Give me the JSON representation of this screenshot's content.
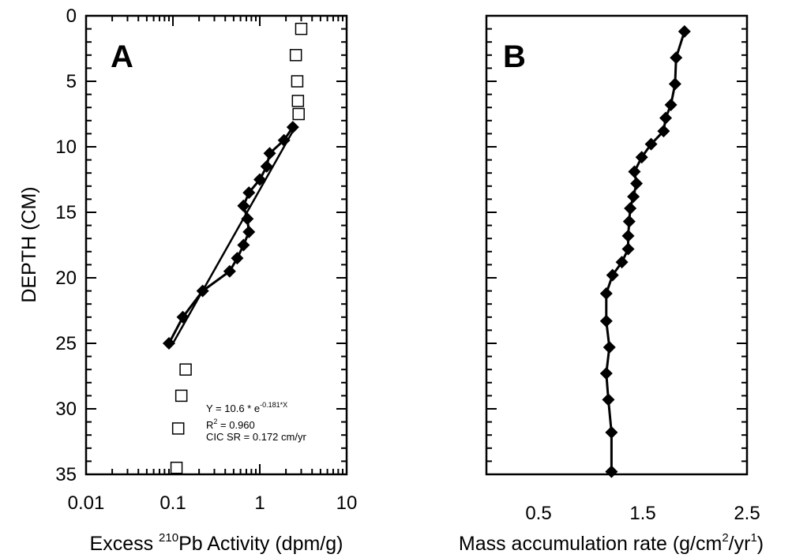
{
  "chart_data": [
    {
      "panel": "A",
      "type": "scatter",
      "xscale": "log",
      "xlim": [
        0.01,
        10
      ],
      "ylim": [
        35,
        0
      ],
      "xticks": [
        "0.01",
        "0.1",
        "1",
        "10"
      ],
      "yticks": [
        "0",
        "5",
        "10",
        "15",
        "20",
        "25",
        "30",
        "35"
      ],
      "xlabel_pre": "Excess ",
      "xlabel_sup": "210",
      "xlabel_post": "Pb Activity (dpm/g)",
      "ylabel": "DEPTH (CM)",
      "series": [
        {
          "marker": "open-square",
          "points": [
            {
              "x": 3.0,
              "y": 1.0
            },
            {
              "x": 2.6,
              "y": 3.0
            },
            {
              "x": 2.7,
              "y": 5.0
            },
            {
              "x": 2.75,
              "y": 6.5
            },
            {
              "x": 2.8,
              "y": 7.5
            },
            {
              "x": 0.14,
              "y": 27.0
            },
            {
              "x": 0.125,
              "y": 29.0
            },
            {
              "x": 0.115,
              "y": 31.5
            },
            {
              "x": 0.11,
              "y": 34.5
            }
          ]
        },
        {
          "marker": "filled-diamond",
          "connected": true,
          "points": [
            {
              "x": 2.4,
              "y": 8.5
            },
            {
              "x": 1.9,
              "y": 9.5
            },
            {
              "x": 1.3,
              "y": 10.5
            },
            {
              "x": 1.2,
              "y": 11.5
            },
            {
              "x": 1.0,
              "y": 12.5
            },
            {
              "x": 0.75,
              "y": 13.5
            },
            {
              "x": 0.65,
              "y": 14.5
            },
            {
              "x": 0.72,
              "y": 15.5
            },
            {
              "x": 0.75,
              "y": 16.5
            },
            {
              "x": 0.65,
              "y": 17.5
            },
            {
              "x": 0.55,
              "y": 18.5
            },
            {
              "x": 0.45,
              "y": 19.5
            },
            {
              "x": 0.22,
              "y": 21.0
            },
            {
              "x": 0.13,
              "y": 23.0
            },
            {
              "x": 0.09,
              "y": 25.0
            }
          ]
        },
        {
          "type": "fit-line",
          "points": [
            {
              "x": 2.55,
              "y": 8.5
            },
            {
              "x": 0.1,
              "y": 25.0
            }
          ]
        }
      ],
      "annotation": {
        "eq_pre": "Y = 10.6 * e",
        "eq_sup": "-0.181*X",
        "r2_pre": "R",
        "r2_sup": "2",
        "r2_post": " = 0.960",
        "cic": "CIC SR = 0.172 cm/yr"
      }
    },
    {
      "panel": "B",
      "type": "line",
      "xlim": [
        0,
        2.5
      ],
      "ylim": [
        35,
        0
      ],
      "xticks": [
        "0.5",
        "1.5",
        "2.5"
      ],
      "xlabel_pre": "Mass accumulation rate (g/cm",
      "xlabel_sup1": "2",
      "xlabel_mid": "/yr",
      "xlabel_sup2": "1",
      "xlabel_post": ")",
      "marker": "filled-diamond",
      "points": [
        {
          "x": 1.9,
          "y": 1.2
        },
        {
          "x": 1.82,
          "y": 3.2
        },
        {
          "x": 1.81,
          "y": 5.2
        },
        {
          "x": 1.77,
          "y": 6.8
        },
        {
          "x": 1.72,
          "y": 7.8
        },
        {
          "x": 1.7,
          "y": 8.8
        },
        {
          "x": 1.58,
          "y": 9.8
        },
        {
          "x": 1.49,
          "y": 10.8
        },
        {
          "x": 1.42,
          "y": 11.9
        },
        {
          "x": 1.44,
          "y": 12.8
        },
        {
          "x": 1.41,
          "y": 13.8
        },
        {
          "x": 1.38,
          "y": 14.7
        },
        {
          "x": 1.37,
          "y": 15.7
        },
        {
          "x": 1.36,
          "y": 16.8
        },
        {
          "x": 1.36,
          "y": 17.8
        },
        {
          "x": 1.3,
          "y": 18.8
        },
        {
          "x": 1.21,
          "y": 19.8
        },
        {
          "x": 1.15,
          "y": 21.2
        },
        {
          "x": 1.15,
          "y": 23.3
        },
        {
          "x": 1.18,
          "y": 25.3
        },
        {
          "x": 1.15,
          "y": 27.3
        },
        {
          "x": 1.17,
          "y": 29.3
        },
        {
          "x": 1.2,
          "y": 31.8
        },
        {
          "x": 1.2,
          "y": 34.8
        }
      ]
    }
  ]
}
